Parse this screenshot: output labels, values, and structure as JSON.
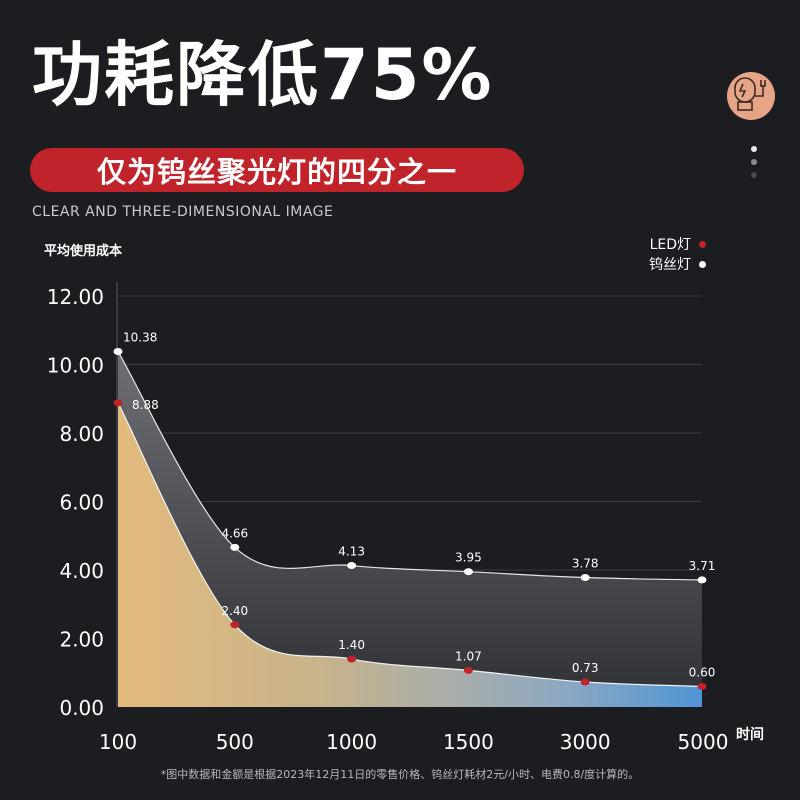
{
  "headline": "功耗降低75%",
  "ribbon": "仅为钨丝聚光灯的四分之一",
  "subtitle": "CLEAR AND THREE-DIMENSIONAL IMAGE",
  "footnote": "*图中数据和金额是根据2023年12月11日的零售价格、钨丝灯耗材2元/小时、电费0.8/度计算的。",
  "badge_icon": "energy-saving-bulb-icon",
  "colors": {
    "background": "#1c1d21",
    "accent_red": "#c0232a",
    "led_point": "#c0232a",
    "tungsten_point": "#ffffff"
  },
  "chart_data": {
    "type": "area",
    "ylabel": "平均使用成本",
    "xlabel": "时间",
    "categories": [
      "100",
      "500",
      "1000",
      "1500",
      "3000",
      "5000"
    ],
    "y_ticks": [
      "0.00",
      "2.00",
      "4.00",
      "6.00",
      "8.00",
      "10.00",
      "12.00"
    ],
    "ylim": [
      0,
      12
    ],
    "grid": true,
    "legend_position": "top-right",
    "series": [
      {
        "name": "LED灯",
        "values": [
          8.88,
          2.4,
          1.4,
          1.07,
          0.73,
          0.6
        ],
        "labels": [
          "8.88",
          "2.40",
          "1.40",
          "1.07",
          "0.73",
          "0.60"
        ],
        "color": "#c0232a"
      },
      {
        "name": "钨丝灯",
        "values": [
          10.38,
          4.66,
          4.13,
          3.95,
          3.78,
          3.71
        ],
        "labels": [
          "10.38",
          "4.66",
          "4.13",
          "3.95",
          "3.78",
          "3.71"
        ],
        "color": "#ffffff"
      }
    ]
  }
}
